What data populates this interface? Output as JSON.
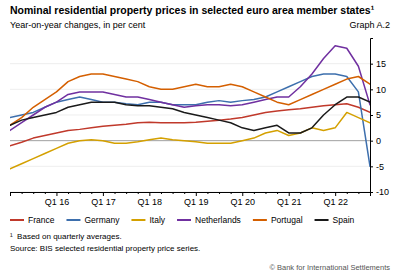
{
  "chart_data": {
    "type": "line",
    "title": "Nominal residential property prices in selected euro area member states¹",
    "subtitle": "Year-on-year changes, in per cent",
    "annotations": [
      "Graph A.2",
      "¹  Based on quarterly averages.",
      "Source: BIS selected residential property price series.",
      "© Bank for International Settlements"
    ],
    "categories": [
      null,
      null,
      null,
      null,
      "Q1 16",
      null,
      null,
      null,
      "Q1 17",
      null,
      null,
      null,
      "Q1 18",
      null,
      null,
      null,
      "Q1 19",
      null,
      null,
      null,
      "Q1 20",
      null,
      null,
      null,
      "Q1 21",
      null,
      null,
      null,
      "Q1 22",
      null,
      null,
      null
    ],
    "series": [
      {
        "name": "France",
        "color": "#c0392b",
        "values": [
          -1.0,
          -0.3,
          0.5,
          1.0,
          1.5,
          2.0,
          2.2,
          2.5,
          2.8,
          3.0,
          3.2,
          3.5,
          3.6,
          3.5,
          3.5,
          3.5,
          3.6,
          3.8,
          4.0,
          4.2,
          4.5,
          5.0,
          5.5,
          5.8,
          6.0,
          6.2,
          6.5,
          6.8,
          7.0,
          7.2,
          6.5,
          5.5
        ]
      },
      {
        "name": "Germany",
        "color": "#3d6fad",
        "values": [
          4.5,
          5.0,
          5.5,
          6.5,
          7.5,
          8.0,
          8.5,
          8.0,
          7.5,
          7.5,
          7.2,
          7.0,
          7.5,
          7.5,
          7.0,
          7.0,
          7.0,
          7.5,
          7.8,
          7.5,
          7.8,
          8.0,
          8.5,
          9.5,
          10.5,
          11.5,
          12.5,
          13.0,
          13.0,
          12.5,
          9.5,
          -5.0
        ]
      },
      {
        "name": "Italy",
        "color": "#d4a000",
        "values": [
          -5.5,
          -4.5,
          -3.5,
          -2.5,
          -1.5,
          -0.5,
          0.0,
          0.2,
          0.0,
          -0.5,
          -0.5,
          -0.2,
          0.2,
          0.5,
          0.2,
          0.0,
          -0.2,
          -0.5,
          -0.5,
          -0.5,
          0.0,
          0.5,
          1.5,
          2.0,
          1.0,
          1.5,
          2.5,
          2.0,
          2.5,
          5.5,
          4.5,
          3.5
        ]
      },
      {
        "name": "Netherlands",
        "color": "#7030a0",
        "values": [
          2.0,
          3.5,
          5.0,
          6.5,
          7.5,
          9.0,
          9.5,
          9.5,
          9.5,
          9.0,
          8.5,
          8.5,
          8.0,
          7.5,
          7.0,
          6.5,
          6.8,
          7.0,
          7.0,
          6.8,
          7.0,
          7.5,
          8.0,
          8.5,
          8.5,
          10.5,
          13.0,
          16.0,
          18.5,
          18.0,
          14.5,
          7.0
        ]
      },
      {
        "name": "Portugal",
        "color": "#d45f00",
        "values": [
          3.0,
          4.5,
          6.5,
          8.0,
          9.5,
          11.5,
          12.5,
          13.0,
          13.0,
          12.5,
          12.0,
          11.5,
          10.5,
          10.0,
          10.0,
          10.5,
          11.0,
          10.5,
          10.5,
          11.0,
          10.5,
          9.5,
          8.5,
          7.5,
          7.0,
          8.0,
          9.0,
          10.0,
          11.0,
          12.0,
          12.5,
          11.0
        ]
      },
      {
        "name": "Spain",
        "color": "#1a1a1a",
        "values": [
          3.0,
          4.0,
          4.5,
          5.0,
          5.5,
          6.5,
          7.0,
          7.5,
          7.5,
          7.5,
          7.0,
          6.8,
          6.8,
          6.5,
          6.2,
          5.5,
          5.0,
          4.5,
          4.0,
          3.5,
          2.5,
          2.0,
          2.5,
          3.0,
          1.5,
          1.5,
          2.5,
          5.0,
          7.0,
          8.5,
          8.5,
          7.5
        ]
      }
    ],
    "ylim": [
      -10,
      20
    ],
    "yticks": [
      -10,
      -5,
      0,
      5,
      10,
      15
    ],
    "grid": true,
    "legend": "bottom"
  }
}
